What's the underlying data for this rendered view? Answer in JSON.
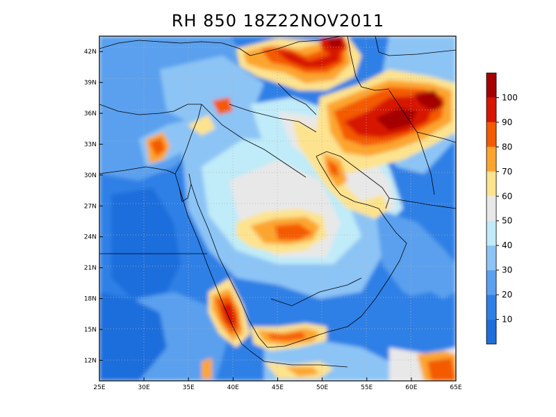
{
  "title": "RH 850 18Z22NOV2011",
  "map": {
    "variable": "RH",
    "level": "850",
    "time": "18Z22NOV2011",
    "lon_range": [
      25,
      65
    ],
    "lat_range": [
      10,
      43.5
    ],
    "lon_ticks": [
      "25E",
      "30E",
      "35E",
      "40E",
      "45E",
      "50E",
      "55E",
      "60E",
      "65E"
    ],
    "lat_ticks": [
      "12N",
      "15N",
      "18N",
      "21N",
      "24N",
      "27N",
      "30N",
      "33N",
      "36N",
      "39N",
      "42N"
    ]
  },
  "legend": {
    "levels": [
      "10",
      "20",
      "30",
      "40",
      "50",
      "60",
      "70",
      "80",
      "90",
      "100"
    ],
    "colors": [
      "#1e6edc",
      "#2f80e6",
      "#5aa0ee",
      "#8cc4f5",
      "#c0ebf8",
      "#e8e8e8",
      "#fde38e",
      "#fca52e",
      "#f45a00",
      "#d71500",
      "#a50000"
    ]
  },
  "palette": {
    "c10": "#1e6edc",
    "c20": "#2f80e6",
    "c30": "#5aa0ee",
    "c40": "#8cc4f5",
    "c50": "#c0ebf8",
    "c60": "#e8e8e8",
    "c70": "#fde38e",
    "c80": "#fca52e",
    "c90": "#f45a00",
    "c100": "#d71500",
    "c110": "#a50000"
  }
}
